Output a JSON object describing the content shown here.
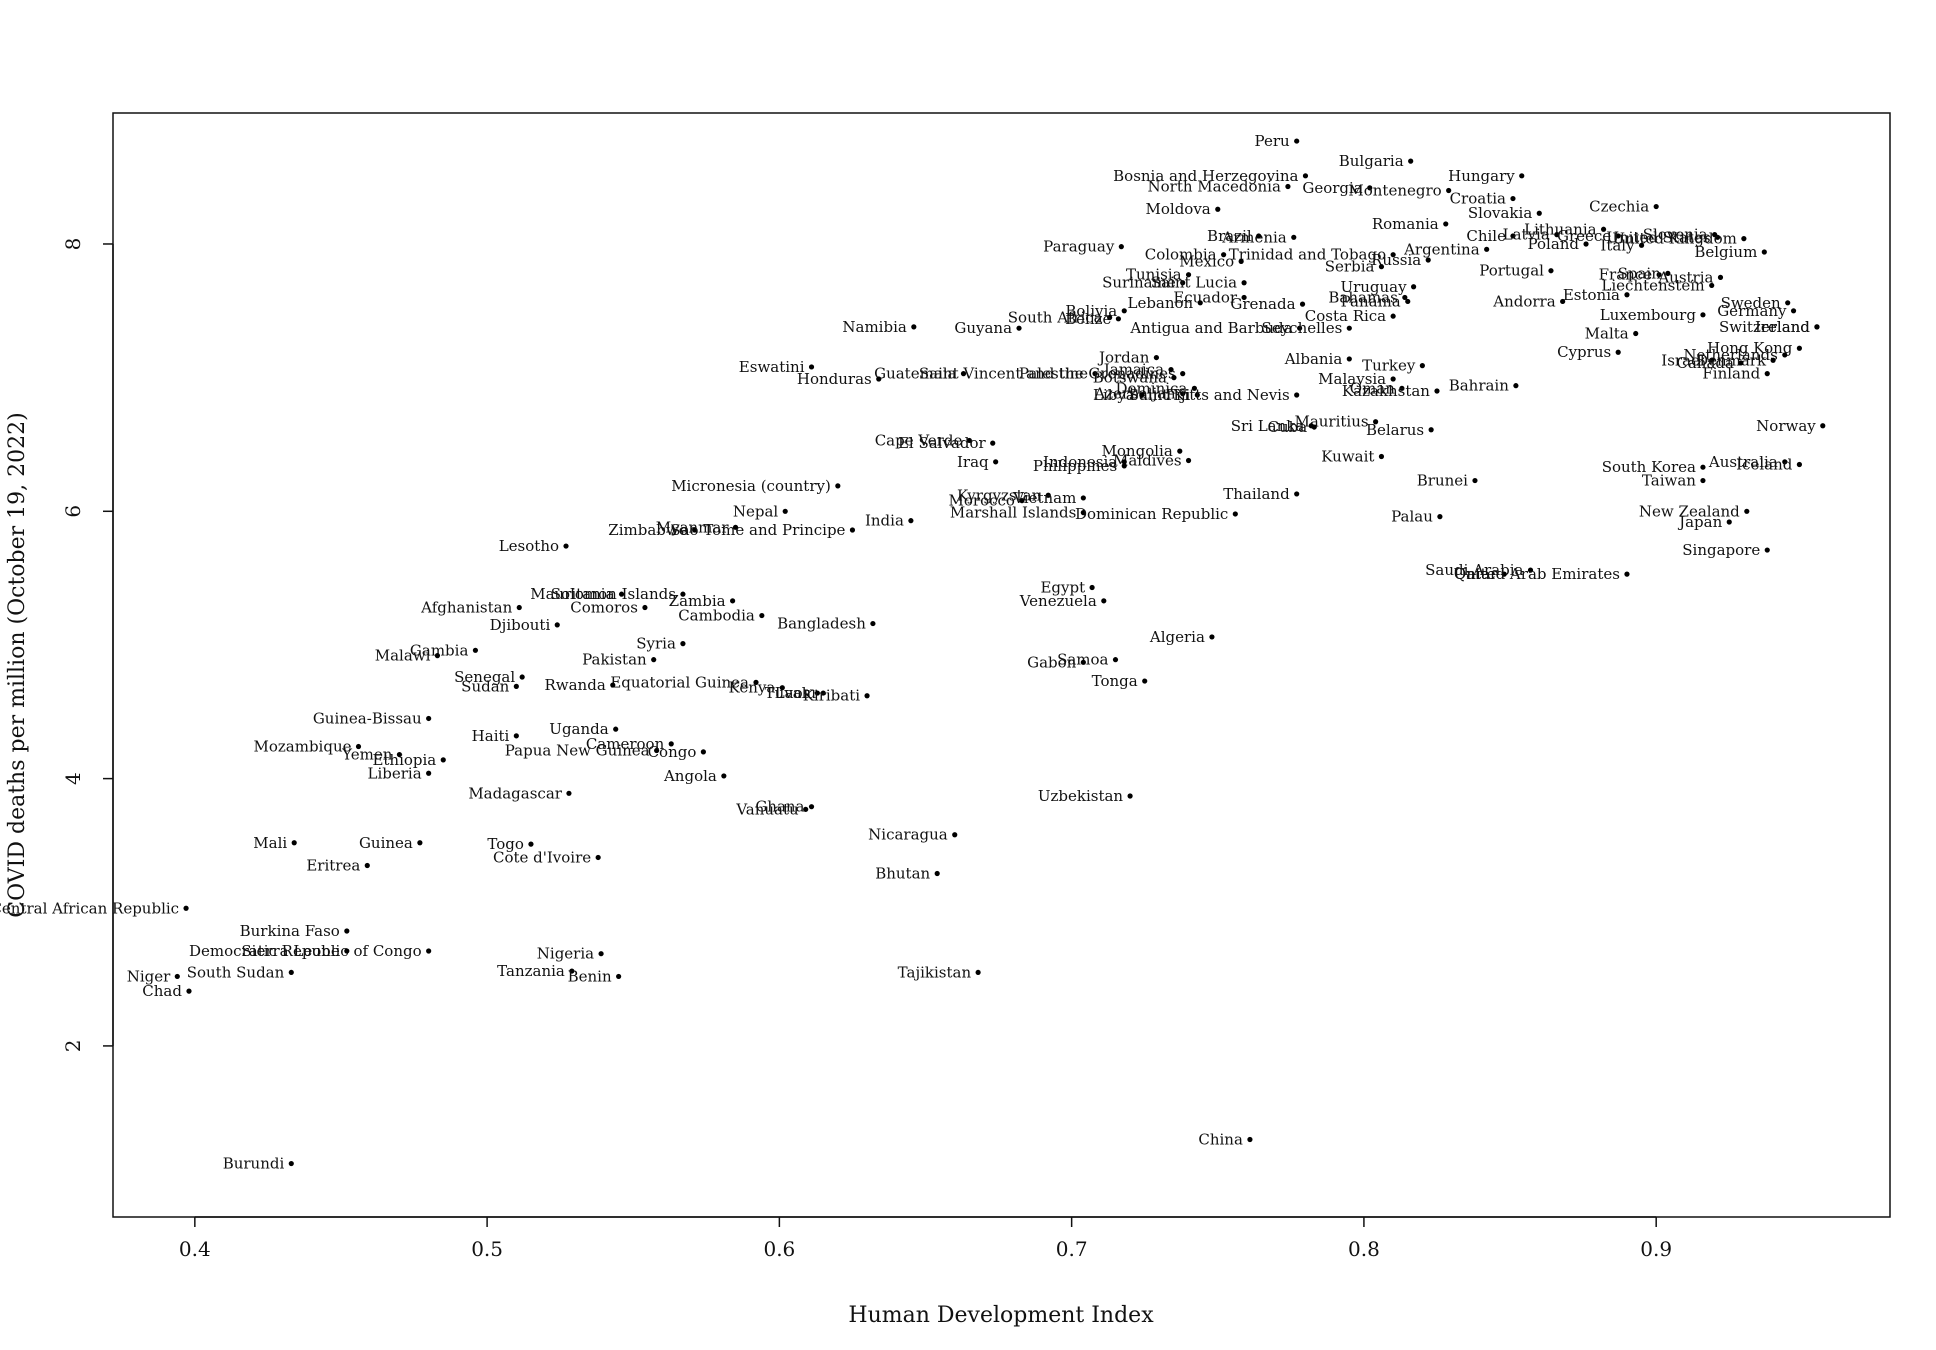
{
  "chart_data": {
    "type": "scatter",
    "title": "",
    "xlabel": "Human Development Index",
    "ylabel": "COVID deaths per million (October 19, 2022)",
    "xlim": [
      0.372,
      0.98
    ],
    "ylim": [
      0.72,
      8.98
    ],
    "x_ticks": [
      0.4,
      0.5,
      0.6,
      0.7,
      0.8,
      0.9
    ],
    "x_tick_labels": [
      "0.4",
      "0.5",
      "0.6",
      "0.7",
      "0.8",
      "0.9"
    ],
    "y_ticks": [
      2,
      4,
      6,
      8
    ],
    "y_tick_labels": [
      "2",
      "4",
      "6",
      "8"
    ],
    "grid": false,
    "legend": "none",
    "points": [
      {
        "label": "Peru",
        "x": 0.777,
        "y": 8.77
      },
      {
        "label": "Bulgaria",
        "x": 0.816,
        "y": 8.62
      },
      {
        "label": "Hungary",
        "x": 0.854,
        "y": 8.51
      },
      {
        "label": "Bosnia and Herzegovina",
        "x": 0.78,
        "y": 8.51
      },
      {
        "label": "North Macedonia",
        "x": 0.774,
        "y": 8.43
      },
      {
        "label": "Georgia",
        "x": 0.802,
        "y": 8.42
      },
      {
        "label": "Montenegro",
        "x": 0.829,
        "y": 8.4
      },
      {
        "label": "Croatia",
        "x": 0.851,
        "y": 8.34
      },
      {
        "label": "Czechia",
        "x": 0.9,
        "y": 8.28
      },
      {
        "label": "Moldova",
        "x": 0.75,
        "y": 8.26
      },
      {
        "label": "Slovakia",
        "x": 0.86,
        "y": 8.23
      },
      {
        "label": "Romania",
        "x": 0.828,
        "y": 8.15
      },
      {
        "label": "Lithuania",
        "x": 0.882,
        "y": 8.11
      },
      {
        "label": "Slovenia",
        "x": 0.92,
        "y": 8.07
      },
      {
        "label": "Armenia",
        "x": 0.776,
        "y": 8.05
      },
      {
        "label": "Brazil",
        "x": 0.764,
        "y": 8.06
      },
      {
        "label": "Chile",
        "x": 0.851,
        "y": 8.06
      },
      {
        "label": "Latvia",
        "x": 0.866,
        "y": 8.07
      },
      {
        "label": "Greece",
        "x": 0.887,
        "y": 8.06
      },
      {
        "label": "United States",
        "x": 0.921,
        "y": 8.05
      },
      {
        "label": "United Kingdom",
        "x": 0.93,
        "y": 8.04
      },
      {
        "label": "Poland",
        "x": 0.876,
        "y": 8.0
      },
      {
        "label": "Italy",
        "x": 0.895,
        "y": 7.99
      },
      {
        "label": "Paraguay",
        "x": 0.717,
        "y": 7.98
      },
      {
        "label": "Argentina",
        "x": 0.842,
        "y": 7.96
      },
      {
        "label": "Belgium",
        "x": 0.937,
        "y": 7.94
      },
      {
        "label": "Colombia",
        "x": 0.752,
        "y": 7.92
      },
      {
        "label": "Trinidad and Tobago",
        "x": 0.81,
        "y": 7.92
      },
      {
        "label": "Mexico",
        "x": 0.758,
        "y": 7.87
      },
      {
        "label": "Russia",
        "x": 0.822,
        "y": 7.88
      },
      {
        "label": "Serbia",
        "x": 0.806,
        "y": 7.83
      },
      {
        "label": "Portugal",
        "x": 0.864,
        "y": 7.8
      },
      {
        "label": "Tunisia",
        "x": 0.74,
        "y": 7.77
      },
      {
        "label": "France",
        "x": 0.901,
        "y": 7.77
      },
      {
        "label": "Spain",
        "x": 0.904,
        "y": 7.78
      },
      {
        "label": "Austria",
        "x": 0.922,
        "y": 7.75
      },
      {
        "label": "Suriname",
        "x": 0.738,
        "y": 7.71
      },
      {
        "label": "Saint Lucia",
        "x": 0.759,
        "y": 7.71
      },
      {
        "label": "Uruguay",
        "x": 0.817,
        "y": 7.68
      },
      {
        "label": "Liechtenstein",
        "x": 0.919,
        "y": 7.69
      },
      {
        "label": "Estonia",
        "x": 0.89,
        "y": 7.62
      },
      {
        "label": "Ecuador",
        "x": 0.759,
        "y": 7.6
      },
      {
        "label": "Bahamas",
        "x": 0.814,
        "y": 7.6
      },
      {
        "label": "Panama",
        "x": 0.815,
        "y": 7.57
      },
      {
        "label": "Andorra",
        "x": 0.868,
        "y": 7.57
      },
      {
        "label": "Lebanon",
        "x": 0.744,
        "y": 7.56
      },
      {
        "label": "Grenada",
        "x": 0.779,
        "y": 7.55
      },
      {
        "label": "Sweden",
        "x": 0.945,
        "y": 7.56
      },
      {
        "label": "Bolivia",
        "x": 0.718,
        "y": 7.5
      },
      {
        "label": "Germany",
        "x": 0.947,
        "y": 7.5
      },
      {
        "label": "Luxembourg",
        "x": 0.916,
        "y": 7.47
      },
      {
        "label": "Costa Rica",
        "x": 0.81,
        "y": 7.46
      },
      {
        "label": "South Africa",
        "x": 0.713,
        "y": 7.45
      },
      {
        "label": "Belize",
        "x": 0.716,
        "y": 7.44
      },
      {
        "label": "Ireland",
        "x": 0.955,
        "y": 7.38
      },
      {
        "label": "Switzerland",
        "x": 0.955,
        "y": 7.38
      },
      {
        "label": "Namibia",
        "x": 0.646,
        "y": 7.38
      },
      {
        "label": "Guyana",
        "x": 0.682,
        "y": 7.37
      },
      {
        "label": "Antigua and Barbuda",
        "x": 0.778,
        "y": 7.37
      },
      {
        "label": "Seychelles",
        "x": 0.795,
        "y": 7.37
      },
      {
        "label": "Malta",
        "x": 0.893,
        "y": 7.33
      },
      {
        "label": "Hong Kong",
        "x": 0.949,
        "y": 7.22
      },
      {
        "label": "Cyprus",
        "x": 0.887,
        "y": 7.19
      },
      {
        "label": "Netherlands",
        "x": 0.944,
        "y": 7.17
      },
      {
        "label": "Jordan",
        "x": 0.729,
        "y": 7.15
      },
      {
        "label": "Albania",
        "x": 0.795,
        "y": 7.14
      },
      {
        "label": "Israel",
        "x": 0.919,
        "y": 7.13
      },
      {
        "label": "Denmark",
        "x": 0.94,
        "y": 7.13
      },
      {
        "label": "Canada",
        "x": 0.929,
        "y": 7.11
      },
      {
        "label": "Turkey",
        "x": 0.82,
        "y": 7.09
      },
      {
        "label": "Eswatini",
        "x": 0.611,
        "y": 7.08
      },
      {
        "label": "Jamaica",
        "x": 0.734,
        "y": 7.06
      },
      {
        "label": "Finland",
        "x": 0.938,
        "y": 7.03
      },
      {
        "label": "Guatemala",
        "x": 0.663,
        "y": 7.03
      },
      {
        "label": "Saint Vincent and the Grenadines",
        "x": 0.738,
        "y": 7.03
      },
      {
        "label": "Palestine",
        "x": 0.708,
        "y": 7.03
      },
      {
        "label": "Botswana",
        "x": 0.735,
        "y": 7.0
      },
      {
        "label": "Malaysia",
        "x": 0.81,
        "y": 6.99
      },
      {
        "label": "Honduras",
        "x": 0.634,
        "y": 6.99
      },
      {
        "label": "Bahrain",
        "x": 0.852,
        "y": 6.94
      },
      {
        "label": "Dominica",
        "x": 0.742,
        "y": 6.92
      },
      {
        "label": "Oman",
        "x": 0.813,
        "y": 6.92
      },
      {
        "label": "Kazakhstan",
        "x": 0.825,
        "y": 6.9
      },
      {
        "label": "Azerbaijan",
        "x": 0.738,
        "y": 6.88
      },
      {
        "label": "Fiji",
        "x": 0.743,
        "y": 6.87
      },
      {
        "label": "Saint Kitts and Nevis",
        "x": 0.777,
        "y": 6.87
      },
      {
        "label": "Libya",
        "x": 0.724,
        "y": 6.87
      },
      {
        "label": "Norway",
        "x": 0.957,
        "y": 6.64
      },
      {
        "label": "Mauritius",
        "x": 0.804,
        "y": 6.67
      },
      {
        "label": "Sri Lanka",
        "x": 0.782,
        "y": 6.64
      },
      {
        "label": "Cuba",
        "x": 0.783,
        "y": 6.63
      },
      {
        "label": "Belarus",
        "x": 0.823,
        "y": 6.61
      },
      {
        "label": "Cape Verde",
        "x": 0.665,
        "y": 6.53
      },
      {
        "label": "El Salvador",
        "x": 0.673,
        "y": 6.51
      },
      {
        "label": "Mongolia",
        "x": 0.737,
        "y": 6.45
      },
      {
        "label": "Kuwait",
        "x": 0.806,
        "y": 6.41
      },
      {
        "label": "Maldives",
        "x": 0.74,
        "y": 6.38
      },
      {
        "label": "Indonesia",
        "x": 0.718,
        "y": 6.37
      },
      {
        "label": "Iraq",
        "x": 0.674,
        "y": 6.37
      },
      {
        "label": "Australia",
        "x": 0.944,
        "y": 6.37
      },
      {
        "label": "Iceland",
        "x": 0.949,
        "y": 6.35
      },
      {
        "label": "Philippines",
        "x": 0.718,
        "y": 6.34
      },
      {
        "label": "South Korea",
        "x": 0.916,
        "y": 6.33
      },
      {
        "label": "Brunei",
        "x": 0.838,
        "y": 6.23
      },
      {
        "label": "Taiwan",
        "x": 0.916,
        "y": 6.23
      },
      {
        "label": "Micronesia (country)",
        "x": 0.62,
        "y": 6.19
      },
      {
        "label": "Thailand",
        "x": 0.777,
        "y": 6.13
      },
      {
        "label": "Kyrgyzstan",
        "x": 0.692,
        "y": 6.12
      },
      {
        "label": "Vietnam",
        "x": 0.704,
        "y": 6.1
      },
      {
        "label": "Morocco",
        "x": 0.683,
        "y": 6.08
      },
      {
        "label": "New Zealand",
        "x": 0.931,
        "y": 6.0
      },
      {
        "label": "Nepal",
        "x": 0.602,
        "y": 6.0
      },
      {
        "label": "Marshall Islands",
        "x": 0.704,
        "y": 5.99
      },
      {
        "label": "Dominican Republic",
        "x": 0.756,
        "y": 5.98
      },
      {
        "label": "Palau",
        "x": 0.826,
        "y": 5.96
      },
      {
        "label": "India",
        "x": 0.645,
        "y": 5.93
      },
      {
        "label": "Japan",
        "x": 0.925,
        "y": 5.92
      },
      {
        "label": "Myanmar",
        "x": 0.585,
        "y": 5.88
      },
      {
        "label": "Zimbabwe",
        "x": 0.571,
        "y": 5.86
      },
      {
        "label": "Sao Tome and Principe",
        "x": 0.625,
        "y": 5.86
      },
      {
        "label": "Lesotho",
        "x": 0.527,
        "y": 5.74
      },
      {
        "label": "Singapore",
        "x": 0.938,
        "y": 5.71
      },
      {
        "label": "Saudi Arabia",
        "x": 0.857,
        "y": 5.56
      },
      {
        "label": "Qatar",
        "x": 0.848,
        "y": 5.53
      },
      {
        "label": "United Arab Emirates",
        "x": 0.89,
        "y": 5.53
      },
      {
        "label": "Egypt",
        "x": 0.707,
        "y": 5.43
      },
      {
        "label": "Mauritania",
        "x": 0.546,
        "y": 5.38
      },
      {
        "label": "Solomon Islands",
        "x": 0.567,
        "y": 5.38
      },
      {
        "label": "Zambia",
        "x": 0.584,
        "y": 5.33
      },
      {
        "label": "Venezuela",
        "x": 0.711,
        "y": 5.33
      },
      {
        "label": "Afghanistan",
        "x": 0.511,
        "y": 5.28
      },
      {
        "label": "Comoros",
        "x": 0.554,
        "y": 5.28
      },
      {
        "label": "Cambodia",
        "x": 0.594,
        "y": 5.22
      },
      {
        "label": "Bangladesh",
        "x": 0.632,
        "y": 5.16
      },
      {
        "label": "Djibouti",
        "x": 0.524,
        "y": 5.15
      },
      {
        "label": "Algeria",
        "x": 0.748,
        "y": 5.06
      },
      {
        "label": "Syria",
        "x": 0.567,
        "y": 5.01
      },
      {
        "label": "Gambia",
        "x": 0.496,
        "y": 4.96
      },
      {
        "label": "Malawi",
        "x": 0.483,
        "y": 4.92
      },
      {
        "label": "Pakistan",
        "x": 0.557,
        "y": 4.89
      },
      {
        "label": "Samoa",
        "x": 0.715,
        "y": 4.89
      },
      {
        "label": "Gabon",
        "x": 0.704,
        "y": 4.87
      },
      {
        "label": "Senegal",
        "x": 0.512,
        "y": 4.76
      },
      {
        "label": "Tonga",
        "x": 0.725,
        "y": 4.73
      },
      {
        "label": "Equatorial Guinea",
        "x": 0.592,
        "y": 4.72
      },
      {
        "label": "Sudan",
        "x": 0.51,
        "y": 4.69
      },
      {
        "label": "Rwanda",
        "x": 0.543,
        "y": 4.7
      },
      {
        "label": "Kenya",
        "x": 0.601,
        "y": 4.68
      },
      {
        "label": "Tuvalu",
        "x": 0.615,
        "y": 4.64
      },
      {
        "label": "Laos",
        "x": 0.613,
        "y": 4.64
      },
      {
        "label": "Kiribati",
        "x": 0.63,
        "y": 4.62
      },
      {
        "label": "Guinea-Bissau",
        "x": 0.48,
        "y": 4.45
      },
      {
        "label": "Uganda",
        "x": 0.544,
        "y": 4.37
      },
      {
        "label": "Haiti",
        "x": 0.51,
        "y": 4.32
      },
      {
        "label": "Cameroon",
        "x": 0.563,
        "y": 4.26
      },
      {
        "label": "Mozambique",
        "x": 0.456,
        "y": 4.24
      },
      {
        "label": "Papua New Guinea",
        "x": 0.558,
        "y": 4.21
      },
      {
        "label": "Congo",
        "x": 0.574,
        "y": 4.2
      },
      {
        "label": "Yemen",
        "x": 0.47,
        "y": 4.18
      },
      {
        "label": "Ethiopia",
        "x": 0.485,
        "y": 4.14
      },
      {
        "label": "Liberia",
        "x": 0.48,
        "y": 4.04
      },
      {
        "label": "Angola",
        "x": 0.581,
        "y": 4.02
      },
      {
        "label": "Madagascar",
        "x": 0.528,
        "y": 3.89
      },
      {
        "label": "Uzbekistan",
        "x": 0.72,
        "y": 3.87
      },
      {
        "label": "Ghana",
        "x": 0.611,
        "y": 3.79
      },
      {
        "label": "Vanuatu",
        "x": 0.609,
        "y": 3.77
      },
      {
        "label": "Nicaragua",
        "x": 0.66,
        "y": 3.58
      },
      {
        "label": "Mali",
        "x": 0.434,
        "y": 3.52
      },
      {
        "label": "Guinea",
        "x": 0.477,
        "y": 3.52
      },
      {
        "label": "Togo",
        "x": 0.515,
        "y": 3.51
      },
      {
        "label": "Cote d'Ivoire",
        "x": 0.538,
        "y": 3.41
      },
      {
        "label": "Eritrea",
        "x": 0.459,
        "y": 3.35
      },
      {
        "label": "Bhutan",
        "x": 0.654,
        "y": 3.29
      },
      {
        "label": "Central African Republic",
        "x": 0.397,
        "y": 3.03
      },
      {
        "label": "Burkina Faso",
        "x": 0.452,
        "y": 2.86
      },
      {
        "label": "Democratic Republic of Congo",
        "x": 0.48,
        "y": 2.71
      },
      {
        "label": "Sierra Leone",
        "x": 0.452,
        "y": 2.71
      },
      {
        "label": "Nigeria",
        "x": 0.539,
        "y": 2.69
      },
      {
        "label": "Tanzania",
        "x": 0.529,
        "y": 2.56
      },
      {
        "label": "South Sudan",
        "x": 0.433,
        "y": 2.55
      },
      {
        "label": "Tajikistan",
        "x": 0.668,
        "y": 2.55
      },
      {
        "label": "Benin",
        "x": 0.545,
        "y": 2.52
      },
      {
        "label": "Niger",
        "x": 0.394,
        "y": 2.52
      },
      {
        "label": "Chad",
        "x": 0.398,
        "y": 2.41
      },
      {
        "label": "China",
        "x": 0.761,
        "y": 1.3
      },
      {
        "label": "Burundi",
        "x": 0.433,
        "y": 1.12
      }
    ]
  }
}
